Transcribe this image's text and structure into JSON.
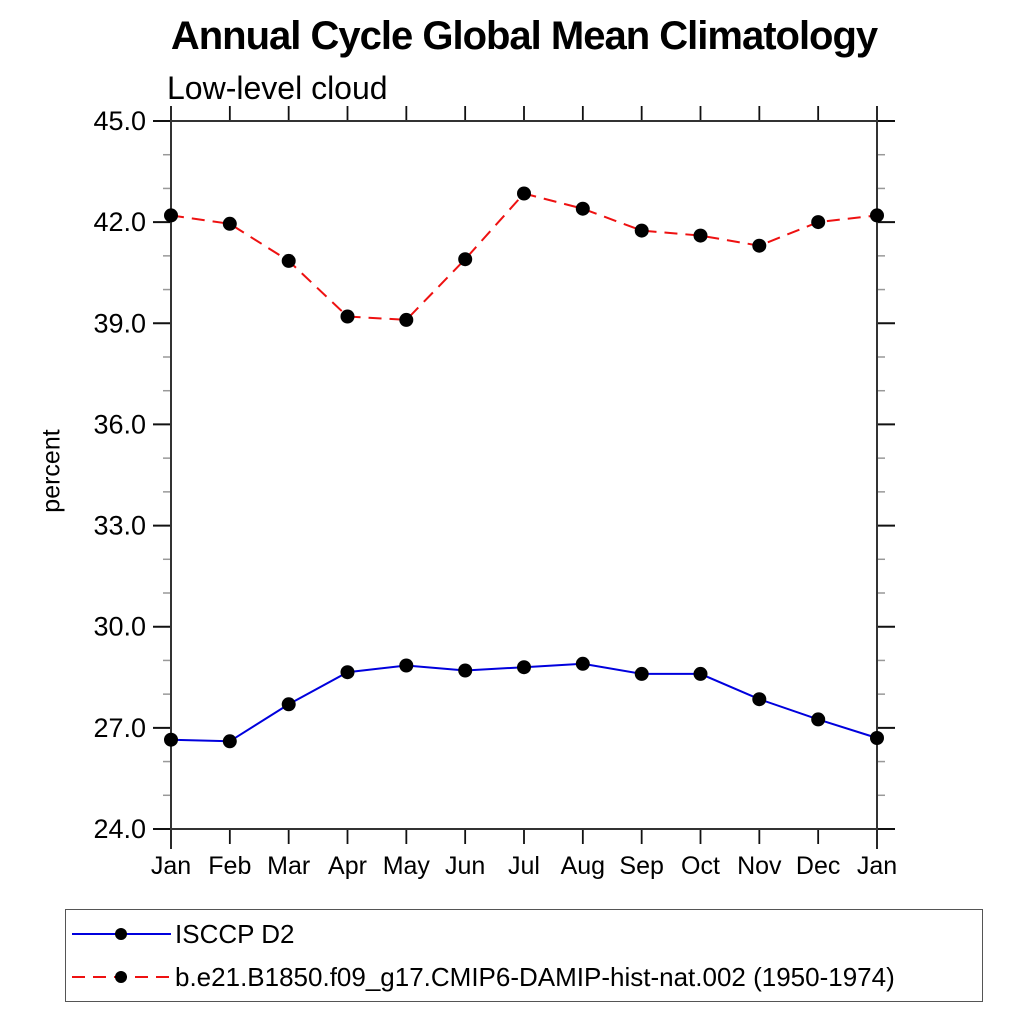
{
  "title": "Annual Cycle Global Mean Climatology",
  "subtitle": "Low-level cloud",
  "chart_data": {
    "type": "line",
    "title": "Annual Cycle Global Mean Climatology",
    "subtitle": "Low-level cloud",
    "xlabel": "",
    "ylabel": "percent",
    "x_categories": [
      "Jan",
      "Feb",
      "Mar",
      "Apr",
      "May",
      "Jun",
      "Jul",
      "Aug",
      "Sep",
      "Oct",
      "Nov",
      "Dec",
      "Jan"
    ],
    "ylim": [
      24.0,
      45.0
    ],
    "y_major_ticks": [
      24,
      27,
      30,
      33,
      36,
      39,
      42,
      45
    ],
    "y_tick_labels": [
      "24.0",
      "27.0",
      "30.0",
      "33.0",
      "36.0",
      "39.0",
      "42.0",
      "45.0"
    ],
    "y_minor_step": 1,
    "grid": "off",
    "legend_position": "bottom-left",
    "series": [
      {
        "name": "ISCCP D2",
        "color": "#0000dd",
        "style": "solid",
        "marker": "circle",
        "marker_color": "#000000",
        "values": [
          26.65,
          26.6,
          27.7,
          28.65,
          28.85,
          28.7,
          28.8,
          28.9,
          28.6,
          28.6,
          27.85,
          27.25,
          26.7
        ]
      },
      {
        "name": "b.e21.B1850.f09_g17.CMIP6-DAMIP-hist-nat.002 (1950-1974)",
        "color": "#ee1111",
        "style": "dashed",
        "marker": "circle",
        "marker_color": "#000000",
        "values": [
          42.2,
          41.95,
          40.85,
          39.2,
          39.1,
          40.9,
          42.85,
          42.4,
          41.75,
          41.6,
          41.3,
          42.0,
          42.2
        ]
      }
    ],
    "colors": {
      "frame": "#333333",
      "major_tick": "#111111",
      "minor_tick": "#999999",
      "legend_border": "#555555"
    }
  }
}
